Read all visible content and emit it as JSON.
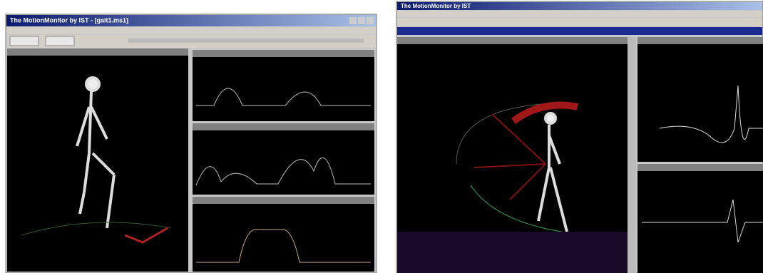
{
  "windows": [
    {
      "title": "The MotionMonitor by IST - [gait1.ms1]"
    },
    {
      "title": "The MotionMonitor by IST"
    }
  ]
}
